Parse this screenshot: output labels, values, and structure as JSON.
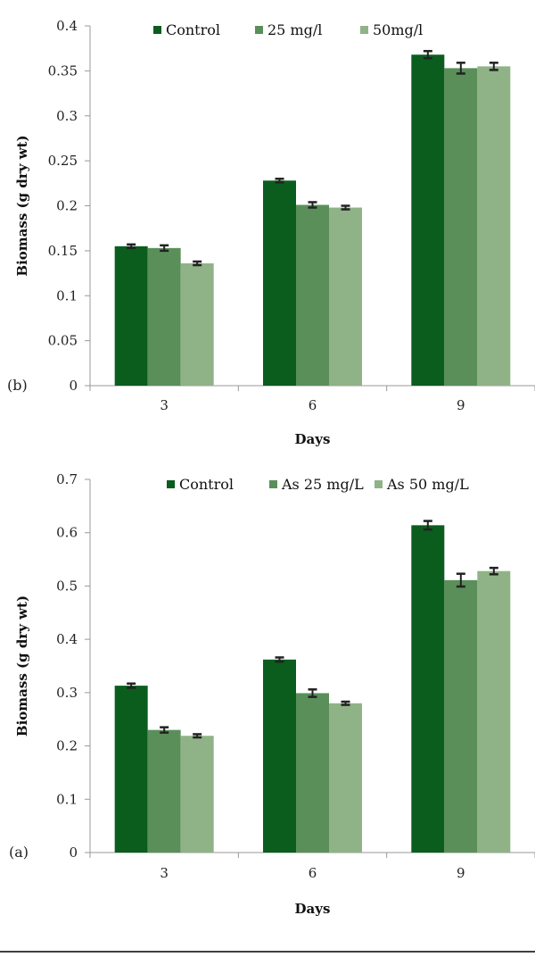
{
  "colors": {
    "control": "#0b5d1e",
    "mid": "#5a8f5a",
    "high": "#8fb387",
    "axis": "#999999",
    "errorbar": "#222222",
    "rule": "#000000"
  },
  "chart_data": [
    {
      "type": "bar",
      "panel_label": "(b)",
      "xlabel": "Days",
      "ylabel": "Biomass (g dry wt)",
      "categories": [
        "3",
        "6",
        "9"
      ],
      "ylim": [
        0,
        0.4
      ],
      "yticks": [
        0,
        0.05,
        0.1,
        0.15,
        0.2,
        0.25,
        0.3,
        0.35,
        0.4
      ],
      "ytick_labels": [
        "0",
        "0.05",
        "0.1",
        "0.15",
        "0.2",
        "0.25",
        "0.3",
        "0.35",
        "0.4"
      ],
      "legend_position": "top",
      "grid": false,
      "series": [
        {
          "name": "Control",
          "values": [
            0.155,
            0.228,
            0.368
          ],
          "errors": [
            0.002,
            0.002,
            0.004
          ]
        },
        {
          "name": "25 mg/l",
          "values": [
            0.153,
            0.201,
            0.353
          ],
          "errors": [
            0.003,
            0.003,
            0.006
          ]
        },
        {
          "name": "50mg/l",
          "values": [
            0.136,
            0.198,
            0.355
          ],
          "errors": [
            0.002,
            0.002,
            0.004
          ]
        }
      ]
    },
    {
      "type": "bar",
      "panel_label": "(a)",
      "xlabel": "Days",
      "ylabel": "Biomass (g dry wt)",
      "categories": [
        "3",
        "6",
        "9"
      ],
      "ylim": [
        0,
        0.7
      ],
      "yticks": [
        0,
        0.1,
        0.2,
        0.3,
        0.4,
        0.5,
        0.6,
        0.7
      ],
      "ytick_labels": [
        "0",
        "0.1",
        "0.2",
        "0.3",
        "0.4",
        "0.5",
        "0.6",
        "0.7"
      ],
      "legend_position": "top",
      "grid": false,
      "series": [
        {
          "name": "Control",
          "values": [
            0.313,
            0.362,
            0.614
          ],
          "errors": [
            0.004,
            0.004,
            0.008
          ]
        },
        {
          "name": "As 25 mg/L",
          "values": [
            0.23,
            0.299,
            0.511
          ],
          "errors": [
            0.005,
            0.007,
            0.012
          ]
        },
        {
          "name": "As 50 mg/L",
          "values": [
            0.219,
            0.28,
            0.528
          ],
          "errors": [
            0.003,
            0.003,
            0.006
          ]
        }
      ]
    }
  ]
}
